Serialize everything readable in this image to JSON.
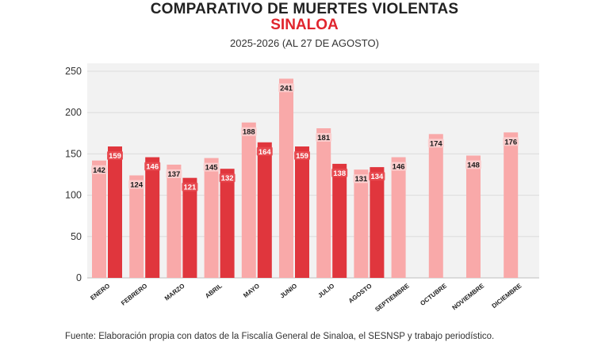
{
  "header": {
    "title": "COMPARATIVO DE MUERTES VIOLENTAS",
    "region": "SINALOA",
    "period": "2025-2026 (AL 27 DE AGOSTO)"
  },
  "footer": {
    "source": "Fuente: Elaboración propia con datos de la Fiscalía General de Sinaloa, el SESNSP y trabajo periodístico."
  },
  "colors": {
    "series_2025": "#f9a9a9",
    "series_2026": "#e0363d",
    "accent": "#e0252d",
    "plot_bg": "#f2f2f2"
  },
  "chart_data": {
    "type": "bar",
    "title": "COMPARATIVO DE MUERTES VIOLENTAS",
    "subtitle": "SINALOA",
    "categories": [
      "ENERO",
      "FEBRERO",
      "MARZO",
      "ABRIL",
      "MAYO",
      "JUNIO",
      "JULIO",
      "AGOSTO",
      "SEPTIEMBRE",
      "OCTUBRE",
      "NOVIEMBRE",
      "DICIEMBRE"
    ],
    "series": [
      {
        "values": [
          142,
          124,
          137,
          145,
          188,
          241,
          181,
          131,
          146,
          174,
          148,
          176
        ]
      },
      {
        "values": [
          159,
          146,
          121,
          132,
          164,
          159,
          138,
          134,
          null,
          null,
          null,
          null
        ]
      }
    ],
    "ylim": [
      0,
      250
    ],
    "yticks": [
      0,
      50,
      100,
      150,
      200,
      250
    ],
    "grid": true,
    "legend": "none",
    "data_labels": true
  }
}
